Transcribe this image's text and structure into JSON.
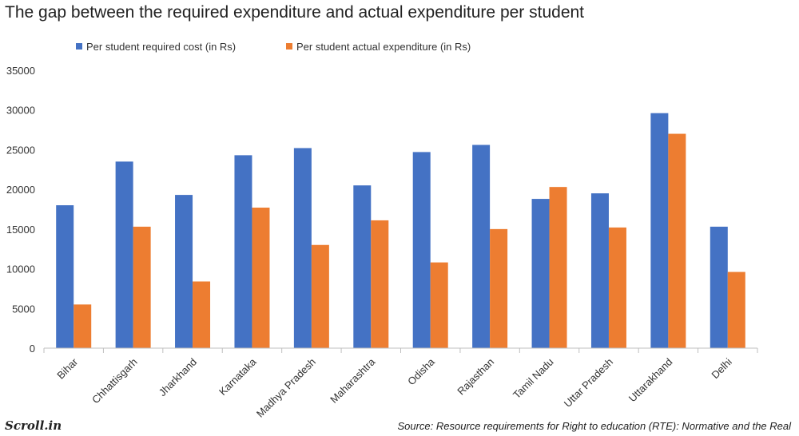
{
  "title": "The gap between the required expenditure and actual expenditure per student",
  "source": "Source: Resource requirements for Right to education (RTE): Normative and the Real",
  "brand": "Scroll.in",
  "chart_data": {
    "type": "bar",
    "categories": [
      "Bihar",
      "Chhattisgarh",
      "Jharkhand",
      "Karnataka",
      "Madhya Pradesh",
      "Maharashtra",
      "Odisha",
      "Rajasthan",
      "Tamil Nadu",
      "Uttar Pradesh",
      "Uttarakhand",
      "Delhi"
    ],
    "series": [
      {
        "name": "Per student required cost (in Rs)",
        "color": "#4472C4",
        "values": [
          18000,
          23500,
          19300,
          24300,
          25200,
          20500,
          24700,
          25600,
          18800,
          19500,
          29600,
          15300
        ]
      },
      {
        "name": "Per student actual expenditure (in Rs)",
        "color": "#ED7D31",
        "values": [
          5500,
          15300,
          8400,
          17700,
          13000,
          16100,
          10800,
          15000,
          20300,
          15200,
          27000,
          9600
        ]
      }
    ],
    "ylim": [
      0,
      35000
    ],
    "yticks": [
      0,
      5000,
      10000,
      15000,
      20000,
      25000,
      30000,
      35000
    ],
    "legend_position": "top-left",
    "grid": false
  }
}
